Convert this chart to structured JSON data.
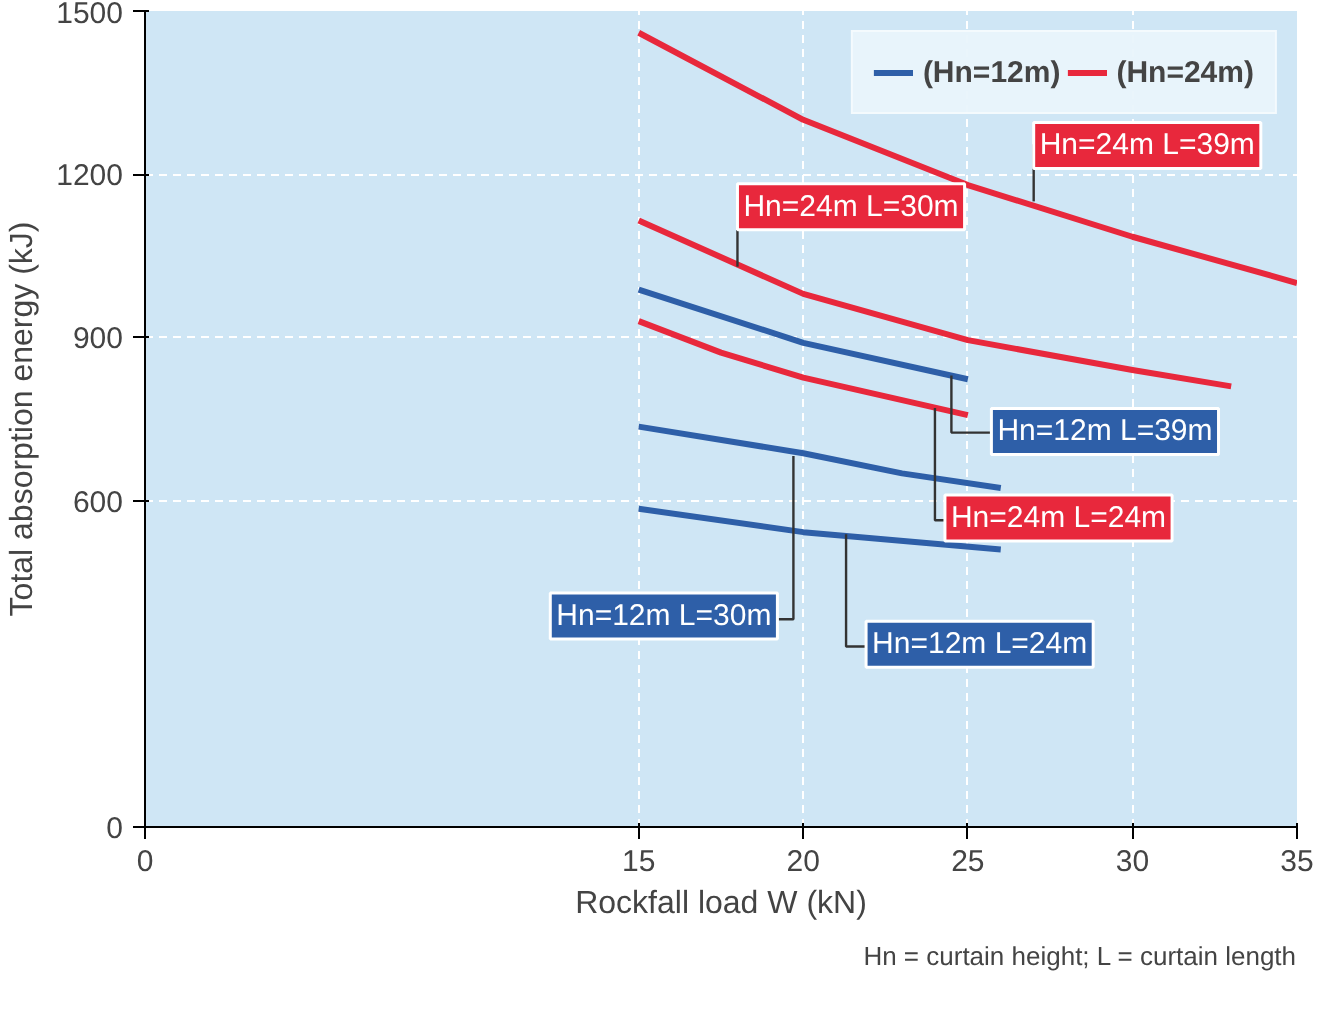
{
  "chart_data": {
    "type": "line",
    "xlabel": "Rockfall load W (kN)",
    "ylabel": "Total absorption energy (kJ)",
    "xlim": [
      0,
      35
    ],
    "xticks": [
      0,
      15,
      20,
      25,
      30,
      35
    ],
    "ylim": [
      0,
      1500
    ],
    "yticks": [
      0,
      600,
      900,
      1200,
      1500
    ],
    "grid": true,
    "legend": "top right",
    "line_style": "solid",
    "series": [
      {
        "name": "(Hn=12m)",
        "color": "#2e5fa8",
        "x": [
          15,
          20,
          25
        ],
        "values": [
          988,
          890,
          823
        ]
      },
      {
        "color": "#2e5fa8",
        "x": [
          15,
          20,
          23,
          26
        ],
        "values": [
          736,
          687,
          650,
          623
        ]
      },
      {
        "color": "#2e5fa8",
        "x": [
          15,
          20,
          26
        ],
        "values": [
          585,
          542,
          510
        ]
      },
      {
        "name": "(Hn=24m)",
        "color": "#e8283c",
        "x": [
          15,
          20,
          25,
          30,
          35
        ],
        "values": [
          1460,
          1300,
          1180,
          1085,
          1000
        ]
      },
      {
        "color": "#e8283c",
        "x": [
          15,
          20,
          25,
          30,
          33
        ],
        "values": [
          1115,
          980,
          895,
          840,
          810
        ]
      },
      {
        "color": "#e8283c",
        "x": [
          15,
          17.5,
          20,
          25
        ],
        "values": [
          930,
          872,
          826,
          757
        ]
      }
    ],
    "annotations": [
      {
        "text": "Hn=24m L=39m",
        "x": 27,
        "y": 1150
      },
      {
        "text": "Hn=24m L=30m",
        "x": 18,
        "y": 1030
      },
      {
        "text": "Hn=12m L=39m",
        "x": 24.5,
        "y": 830
      },
      {
        "text": "Hn=24m L=24m",
        "x": 24,
        "y": 770
      },
      {
        "text": "Hn=12m L=30m",
        "x": 19.7,
        "y": 682
      },
      {
        "text": "Hn=12m L=24m",
        "x": 21.3,
        "y": 538
      },
      "Hn = curtain height; L = curtain length"
    ]
  }
}
